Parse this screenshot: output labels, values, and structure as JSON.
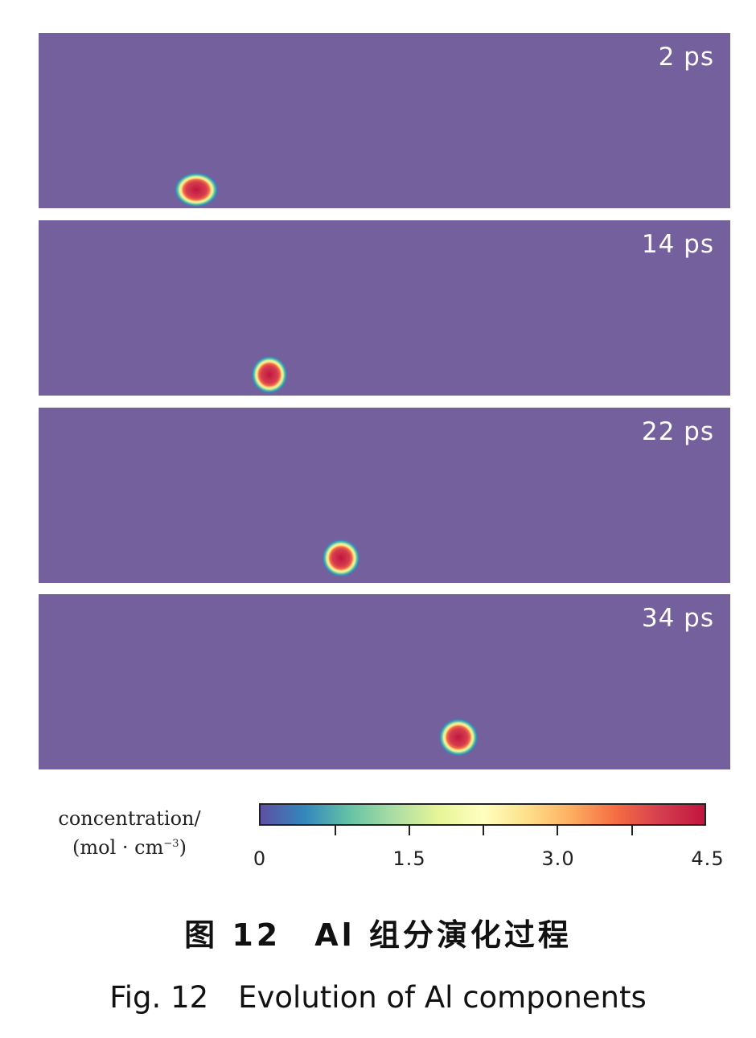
{
  "colors": {
    "background": "#74609c",
    "colormap": [
      "#5e4fa2",
      "#3288bd",
      "#66c2a5",
      "#abdda4",
      "#e6f598",
      "#ffffbf",
      "#fee08b",
      "#fdae61",
      "#f46d43",
      "#d53e4f",
      "#c1153f"
    ]
  },
  "panels": [
    {
      "time": "2 ps"
    },
    {
      "time": "14 ps"
    },
    {
      "time": "22 ps"
    },
    {
      "time": "34 ps"
    }
  ],
  "colorbar": {
    "title": "concentration/",
    "unit": "(mol · cm",
    "unit_exp": "−3",
    "unit_close": ")",
    "ticks": [
      "0",
      "1.5",
      "3.0",
      "4.5"
    ],
    "range": [
      0,
      4.5
    ]
  },
  "caption": {
    "zh": "图 12　Al 组分演化过程",
    "en": "Fig. 12　Evolution of Al components"
  }
}
